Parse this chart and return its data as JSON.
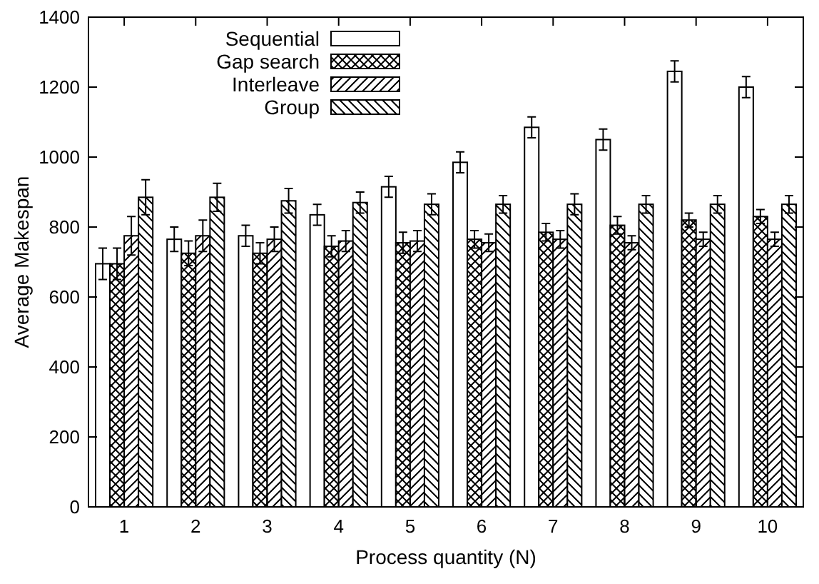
{
  "chart_data": {
    "type": "bar",
    "xlabel": "Process quantity (N)",
    "ylabel": "Average Makespan",
    "categories": [
      "1",
      "2",
      "3",
      "4",
      "5",
      "6",
      "7",
      "8",
      "9",
      "10"
    ],
    "ylim": [
      0,
      1400
    ],
    "yticks": [
      0,
      200,
      400,
      600,
      800,
      1000,
      1200,
      1400
    ],
    "legend": "top left",
    "grid": false,
    "series": [
      {
        "name": "Sequential",
        "color": "#000000",
        "values": [
          695,
          765,
          775,
          835,
          915,
          985,
          1085,
          1050,
          1245,
          1200
        ],
        "errors": [
          45,
          35,
          30,
          30,
          30,
          30,
          30,
          30,
          30,
          30
        ]
      },
      {
        "name": "Gap search",
        "color": "#000000",
        "values": [
          695,
          725,
          725,
          745,
          755,
          765,
          785,
          805,
          820,
          830
        ],
        "errors": [
          45,
          35,
          30,
          30,
          30,
          25,
          25,
          25,
          20,
          20
        ]
      },
      {
        "name": "Interleave",
        "color": "#000000",
        "values": [
          775,
          775,
          765,
          760,
          760,
          755,
          765,
          755,
          765,
          765
        ],
        "errors": [
          55,
          45,
          35,
          30,
          30,
          25,
          25,
          20,
          20,
          20
        ]
      },
      {
        "name": "Group",
        "color": "#000000",
        "values": [
          885,
          885,
          875,
          870,
          865,
          865,
          865,
          865,
          865,
          865
        ],
        "errors": [
          50,
          40,
          35,
          30,
          30,
          25,
          30,
          25,
          25,
          25
        ]
      }
    ]
  }
}
